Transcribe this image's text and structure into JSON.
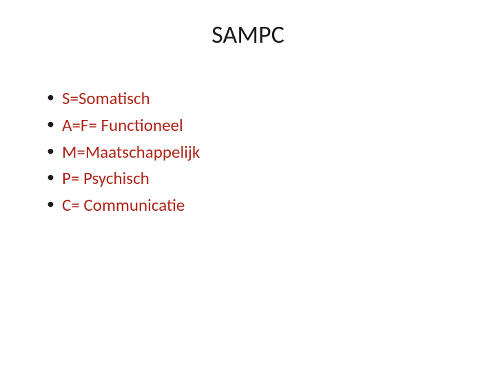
{
  "slide": {
    "title": "SAMPC",
    "title_color": "#1a1a1a",
    "title_fontsize": 36,
    "background_color": "#ffffff",
    "bullets": [
      {
        "text": "S=Somatisch"
      },
      {
        "text": "A=F= Functioneel"
      },
      {
        "text": "M=Maatschappelijk"
      },
      {
        "text": "P= Psychisch"
      },
      {
        "text": "C= Communicatie"
      }
    ],
    "bullet_text_color": "#b02418",
    "bullet_marker_color": "#1a1a1a",
    "bullet_fontsize": 25
  }
}
